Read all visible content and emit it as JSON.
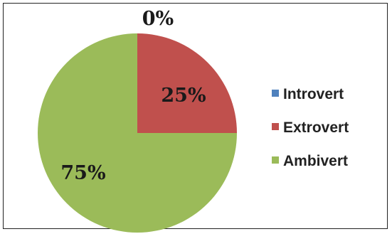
{
  "chart_data": {
    "type": "pie",
    "title": "",
    "categories": [
      "Introvert",
      "Extrovert",
      "Ambivert"
    ],
    "values": [
      0,
      25,
      75
    ],
    "data_labels": [
      "0%",
      "25%",
      "75%"
    ],
    "colors": [
      "#4f81bd",
      "#c0504d",
      "#9bbb59"
    ],
    "legend": {
      "position": "right",
      "entries": [
        "Introvert",
        "Extrovert",
        "Ambivert"
      ]
    }
  }
}
